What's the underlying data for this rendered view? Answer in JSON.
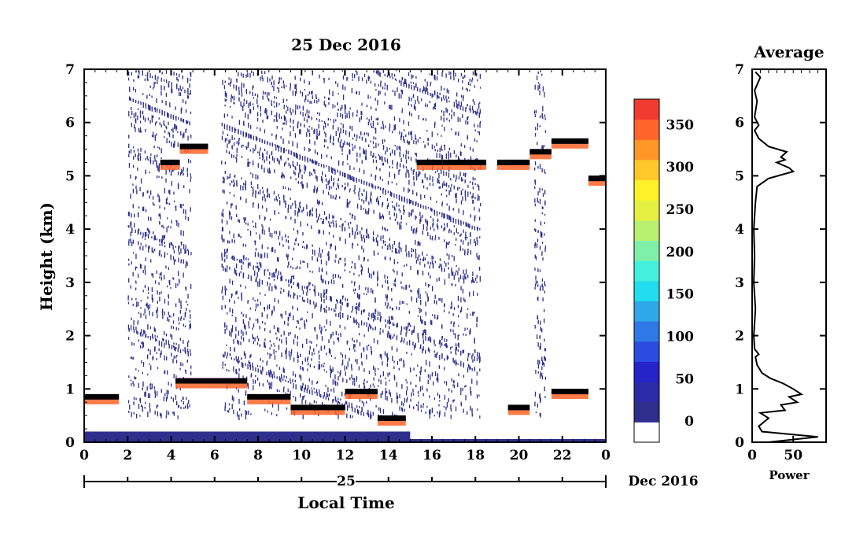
{
  "chart_data": [
    {
      "type": "heatmap",
      "title": "25 Dec 2016",
      "xlabel": "Local Time",
      "ylabel": "Height (km)",
      "x_tick_labels": [
        "0",
        "2",
        "4",
        "6",
        "8",
        "10",
        "12",
        "14",
        "16",
        "18",
        "20",
        "22",
        "0"
      ],
      "x_range": [
        0,
        24
      ],
      "y_tick_labels": [
        "0",
        "1",
        "2",
        "3",
        "4",
        "5",
        "6",
        "7"
      ],
      "ylim": [
        0,
        7
      ],
      "date_axis": {
        "day_label": "25",
        "month_year_label": "Dec 2016"
      },
      "colorbar": {
        "tick_labels": [
          "0",
          "50",
          "100",
          "150",
          "200",
          "250",
          "300",
          "350"
        ],
        "range": [
          -25,
          380
        ],
        "colors": [
          "#ffffff",
          "#2e2e8c",
          "#2b2ba8",
          "#2424c8",
          "#2a4ce0",
          "#2f78e8",
          "#2ea8e8",
          "#22ddee",
          "#44f0dc",
          "#7ef0a8",
          "#b8f070",
          "#e6f040",
          "#fff02a",
          "#ffc82a",
          "#ff9628",
          "#ff6428",
          "#f03c30"
        ]
      },
      "layers": [
        {
          "name": "boundary-layer-echo",
          "x_start": 0,
          "x_end": 15,
          "height_km": [
            0,
            0.2
          ],
          "value": 10
        },
        {
          "name": "low-cloud-echo",
          "segments": [
            [
              0,
              1.6,
              0.8
            ],
            [
              4.2,
              7.5,
              1.1
            ],
            [
              7.5,
              9.5,
              0.8
            ],
            [
              9.5,
              12,
              0.6
            ],
            [
              12,
              13.5,
              0.9
            ],
            [
              13.5,
              14.8,
              0.4
            ],
            [
              19.5,
              20.5,
              0.6
            ],
            [
              21.5,
              23.2,
              0.9
            ]
          ],
          "value": 340
        },
        {
          "name": "mid-cloud-echo",
          "segments": [
            [
              3.5,
              4.4,
              5.2
            ],
            [
              4.4,
              5.7,
              5.5
            ],
            [
              15.3,
              16.5,
              5.2
            ],
            [
              16.5,
              18.5,
              5.2
            ],
            [
              19,
              20.5,
              5.2
            ],
            [
              20.5,
              21.5,
              5.4
            ],
            [
              21.5,
              23.2,
              5.6
            ],
            [
              23.2,
              24,
              4.9
            ]
          ],
          "value": 340
        },
        {
          "name": "noise-region",
          "x_ranges": [
            [
              2,
              4.9
            ],
            [
              6.3,
              18.2
            ],
            [
              20.7,
              21.2
            ]
          ],
          "height_km": [
            0.5,
            7
          ],
          "value": 0
        }
      ]
    },
    {
      "type": "line",
      "title": "Average",
      "xlabel": "Power",
      "x_tick_labels": [
        "0",
        "50"
      ],
      "xlim": [
        0,
        90
      ],
      "ylim": [
        0,
        7
      ],
      "y_tick_labels": [
        "0",
        "1",
        "2",
        "3",
        "4",
        "5",
        "6",
        "7"
      ],
      "series": [
        {
          "points": [
            [
              20,
              0.0
            ],
            [
              80,
              0.1
            ],
            [
              12,
              0.2
            ],
            [
              8,
              0.3
            ],
            [
              20,
              0.45
            ],
            [
              10,
              0.55
            ],
            [
              40,
              0.6
            ],
            [
              35,
              0.7
            ],
            [
              55,
              0.75
            ],
            [
              45,
              0.85
            ],
            [
              60,
              0.9
            ],
            [
              50,
              1.0
            ],
            [
              38,
              1.1
            ],
            [
              22,
              1.2
            ],
            [
              12,
              1.3
            ],
            [
              6,
              1.45
            ],
            [
              4,
              1.6
            ],
            [
              8,
              1.65
            ],
            [
              3,
              1.75
            ],
            [
              2,
              2.0
            ],
            [
              4,
              2.5
            ],
            [
              2,
              3.0
            ],
            [
              3,
              3.5
            ],
            [
              2,
              4.0
            ],
            [
              4,
              4.5
            ],
            [
              6,
              4.8
            ],
            [
              20,
              4.95
            ],
            [
              50,
              5.08
            ],
            [
              45,
              5.15
            ],
            [
              30,
              5.25
            ],
            [
              40,
              5.3
            ],
            [
              35,
              5.35
            ],
            [
              42,
              5.45
            ],
            [
              20,
              5.55
            ],
            [
              8,
              5.7
            ],
            [
              3,
              5.85
            ],
            [
              8,
              5.95
            ],
            [
              3,
              6.1
            ],
            [
              6,
              6.4
            ],
            [
              3,
              6.6
            ],
            [
              10,
              6.85
            ],
            [
              4,
              6.95
            ]
          ]
        }
      ]
    }
  ]
}
